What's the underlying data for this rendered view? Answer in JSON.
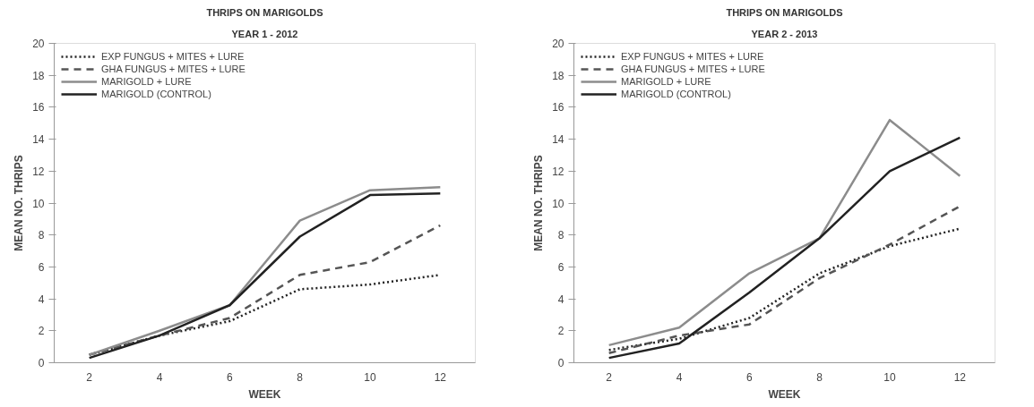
{
  "chart_data": [
    {
      "type": "line",
      "title": "THRIPS ON MARIGOLDS",
      "subtitle": "YEAR 1 - 2012",
      "xlabel": "WEEK",
      "ylabel": "MEAN NO. THRIPS",
      "categories": [
        "2",
        "4",
        "6",
        "8",
        "10",
        "12"
      ],
      "ylim": [
        0,
        20
      ],
      "yticks": [
        0,
        2,
        4,
        6,
        8,
        10,
        12,
        14,
        16,
        18,
        20
      ],
      "grid": false,
      "legend": "top left",
      "marker": "none",
      "series": [
        {
          "name": "EXP FUNGUS + MITES + LURE",
          "color": "#222222",
          "line_style": "dotted",
          "values": [
            0.5,
            1.7,
            2.6,
            4.6,
            4.9,
            5.5
          ]
        },
        {
          "name": "GHA FUNGUS + MITES + LURE",
          "color": "#555555",
          "line_style": "dashed",
          "values": [
            0.5,
            1.7,
            2.8,
            5.5,
            6.3,
            8.6
          ]
        },
        {
          "name": "MARIGOLD + LURE",
          "color": "#8c8c8c",
          "line_style": "solid",
          "values": [
            0.5,
            2.0,
            3.6,
            8.9,
            10.8,
            11.0
          ]
        },
        {
          "name": "MARIGOLD (CONTROL)",
          "color": "#222222",
          "line_style": "solid",
          "values": [
            0.3,
            1.7,
            3.6,
            7.9,
            10.5,
            10.6
          ]
        }
      ]
    },
    {
      "type": "line",
      "title": "THRIPS ON MARIGOLDS",
      "subtitle": "YEAR 2 - 2013",
      "xlabel": "WEEK",
      "ylabel": "MEAN NO. THRIPS",
      "categories": [
        "2",
        "4",
        "6",
        "8",
        "10",
        "12"
      ],
      "ylim": [
        0,
        20
      ],
      "yticks": [
        0,
        2,
        4,
        6,
        8,
        10,
        12,
        14,
        16,
        18,
        20
      ],
      "grid": false,
      "legend": "top left",
      "marker": "none",
      "series": [
        {
          "name": "EXP FUNGUS + MITES + LURE",
          "color": "#222222",
          "line_style": "dotted",
          "values": [
            0.8,
            1.5,
            2.8,
            5.6,
            7.3,
            8.4
          ]
        },
        {
          "name": "GHA FUNGUS + MITES + LURE",
          "color": "#555555",
          "line_style": "dashed",
          "values": [
            0.6,
            1.7,
            2.4,
            5.3,
            7.4,
            9.8
          ]
        },
        {
          "name": "MARIGOLD + LURE",
          "color": "#8c8c8c",
          "line_style": "solid",
          "values": [
            1.1,
            2.2,
            5.6,
            7.8,
            15.2,
            11.7
          ]
        },
        {
          "name": "MARIGOLD (CONTROL)",
          "color": "#222222",
          "line_style": "solid",
          "values": [
            0.3,
            1.2,
            4.4,
            7.8,
            12.0,
            14.1
          ]
        }
      ]
    }
  ]
}
